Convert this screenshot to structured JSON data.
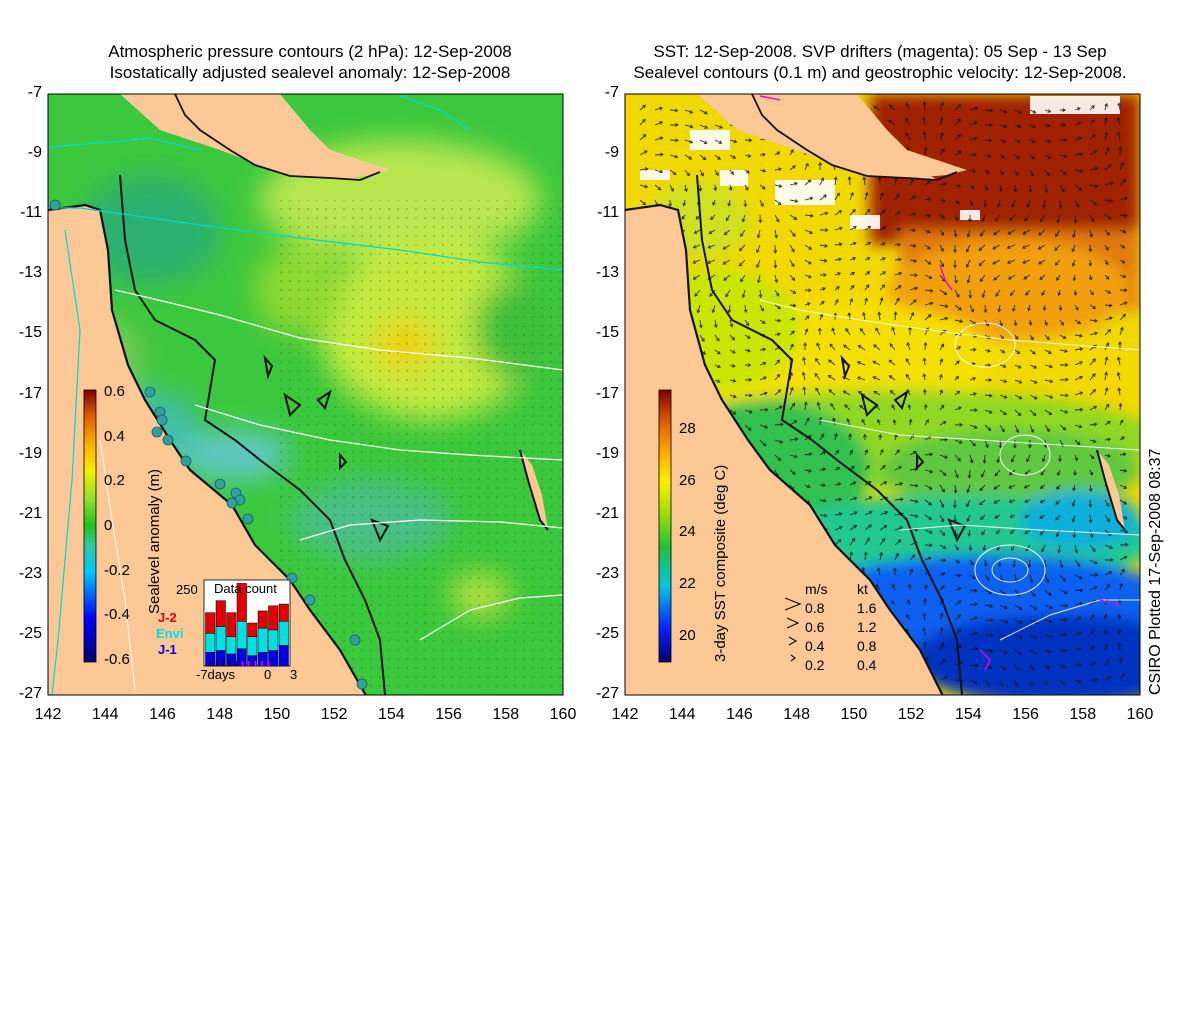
{
  "left_panel": {
    "title_line1": "Atmospheric pressure contours (2 hPa): 12-Sep-2008",
    "title_line2": "Isostatically adjusted sealevel anomaly: 12-Sep-2008",
    "y_ticks": [
      "-7",
      "-9",
      "-11",
      "-13",
      "-15",
      "-17",
      "-19",
      "-21",
      "-23",
      "-25",
      "-27"
    ],
    "x_ticks": [
      "142",
      "144",
      "146",
      "148",
      "150",
      "152",
      "154",
      "156",
      "158",
      "160"
    ],
    "colorbar": {
      "label": "Sealevel anomaly (m)",
      "ticks": [
        "0.6",
        "0.4",
        "0.2",
        "0",
        "-0.2",
        "-0.4",
        "-0.6"
      ],
      "range": [
        -0.6,
        0.6
      ]
    },
    "data_count": {
      "title": "Data count",
      "ymax_label": "250",
      "x_labels": [
        "-7days",
        "0",
        "3"
      ],
      "legend": [
        {
          "name": "J-2",
          "color": "#e00000"
        },
        {
          "name": "Envi",
          "color": "#00e0e0"
        },
        {
          "name": "J-1",
          "color": "#0000e0"
        }
      ],
      "ymax": 250,
      "bars": [
        {
          "j1": 40,
          "envi": 55,
          "j2": 60
        },
        {
          "j1": 45,
          "envi": 70,
          "j2": 75
        },
        {
          "j1": 35,
          "envi": 50,
          "j2": 70
        },
        {
          "j1": 50,
          "envi": 80,
          "j2": 110
        },
        {
          "j1": 30,
          "envi": 55,
          "j2": 40
        },
        {
          "j1": 40,
          "envi": 70,
          "j2": 50
        },
        {
          "j1": 45,
          "envi": 60,
          "j2": 70
        },
        {
          "j1": 60,
          "envi": 70,
          "j2": 50
        }
      ]
    },
    "colors": {
      "land": "#fcc896",
      "coast": "#111111",
      "pressure": "#00d8d8"
    }
  },
  "right_panel": {
    "title_line1": "SST: 12-Sep-2008. SVP drifters (magenta): 05 Sep - 13 Sep",
    "title_line2": "Sealevel contours (0.1 m) and geostrophic velocity: 12-Sep-2008.",
    "y_ticks": [
      "-7",
      "-9",
      "-11",
      "-13",
      "-15",
      "-17",
      "-19",
      "-21",
      "-23",
      "-25",
      "-27"
    ],
    "x_ticks": [
      "142",
      "144",
      "146",
      "148",
      "150",
      "152",
      "154",
      "156",
      "158",
      "160"
    ],
    "colorbar": {
      "label": "3-day SST composite (deg C)",
      "ticks": [
        "28",
        "26",
        "24",
        "22",
        "20"
      ],
      "range": [
        19,
        29.5
      ]
    },
    "velocity_legend": {
      "header": [
        "m/s",
        "kt"
      ],
      "rows": [
        [
          "0.8",
          "1.6"
        ],
        [
          "0.6",
          "1.2"
        ],
        [
          "0.4",
          "0.8"
        ],
        [
          "0.2",
          "0.4"
        ]
      ]
    },
    "colors": {
      "land": "#fcc896",
      "coast": "#111111"
    }
  },
  "footer_stamp": "CSIRO Plotted 17-Sep-2008 08:37"
}
